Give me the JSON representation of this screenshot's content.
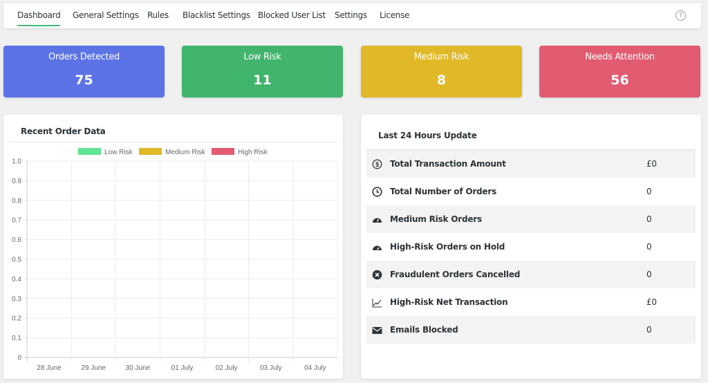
{
  "nav": {
    "tabs": [
      {
        "label": "Dashboard",
        "active": true
      },
      {
        "label": "General Settings"
      },
      {
        "label": "Rules"
      },
      {
        "label": "Blacklist Settings"
      },
      {
        "label": "Blocked User List"
      },
      {
        "label": "Settings"
      },
      {
        "label": "License"
      }
    ],
    "help_icon": "?"
  },
  "cards": [
    {
      "title": "Orders Detected",
      "value": "75",
      "color": "#5c73e6"
    },
    {
      "title": "Low Risk",
      "value": "11",
      "color": "#41b46d"
    },
    {
      "title": "Medium Risk",
      "value": "8",
      "color": "#e0b828"
    },
    {
      "title": "Needs Attention",
      "value": "56",
      "color": "#e15c71"
    }
  ],
  "chart_panel": {
    "title": "Recent Order Data"
  },
  "chart_data": {
    "type": "bar",
    "categories": [
      "28 June",
      "29 June",
      "30 June",
      "01 July",
      "02 July",
      "03 July",
      "04 July"
    ],
    "series": [
      {
        "name": "Low Risk",
        "color": "#5fe594",
        "values": [
          0,
          0,
          0,
          0,
          0,
          0,
          0
        ]
      },
      {
        "name": "Medium Risk",
        "color": "#e0b828",
        "values": [
          0,
          0,
          0,
          0,
          0,
          0,
          0
        ]
      },
      {
        "name": "High Risk",
        "color": "#e15c71",
        "values": [
          0,
          0,
          0,
          0,
          0,
          0,
          0
        ]
      }
    ],
    "yticks": [
      "0",
      "0.1",
      "0.2",
      "0.3",
      "0.4",
      "0.5",
      "0.6",
      "0.7",
      "0.8",
      "0.9",
      "1.0"
    ],
    "ylim": [
      0,
      1
    ],
    "grid": true,
    "legend": "top"
  },
  "updates": {
    "title": "Last 24 Hours Update",
    "rows": [
      {
        "icon": "dollar-circle-icon",
        "label": "Total Transaction Amount",
        "value": "£0"
      },
      {
        "icon": "clock-icon",
        "label": "Total Number of Orders",
        "value": "0"
      },
      {
        "icon": "gauge-icon",
        "label": "Medium Risk Orders",
        "value": "0"
      },
      {
        "icon": "gauge-high-icon",
        "label": "High-Risk Orders on Hold",
        "value": "0"
      },
      {
        "icon": "times-circle-icon",
        "label": "Fraudulent Orders Cancelled",
        "value": "0"
      },
      {
        "icon": "chart-line-icon",
        "label": "High-Risk Net Transaction",
        "value": "£0"
      },
      {
        "icon": "envelope-icon",
        "label": "Emails Blocked",
        "value": "0"
      }
    ]
  }
}
